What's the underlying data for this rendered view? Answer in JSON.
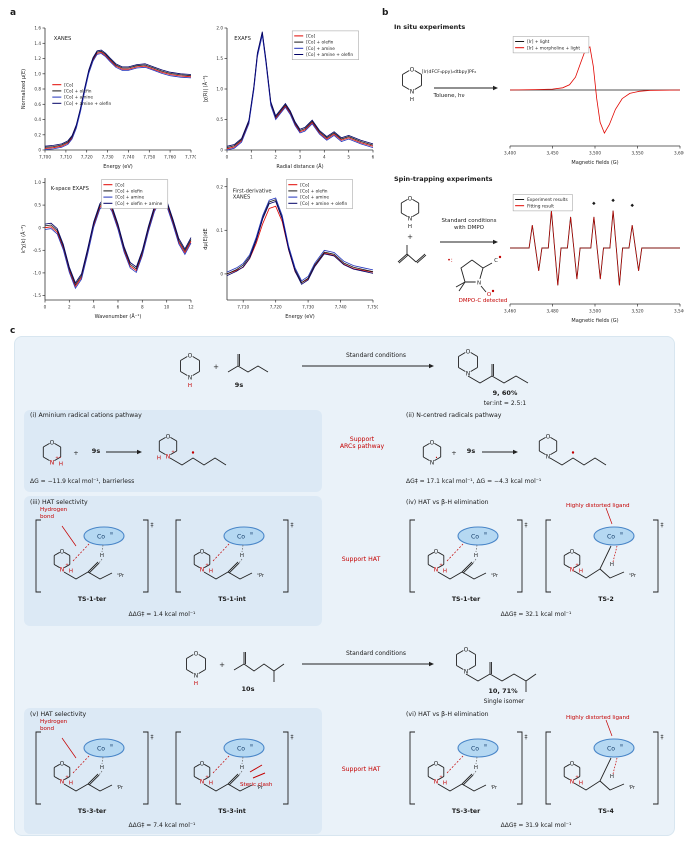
{
  "panels": {
    "a": "a",
    "b": "b",
    "c": "c"
  },
  "colors": {
    "red": "#c40000",
    "ink": "#222222",
    "co_fill": "#b5d8f2",
    "co_edge": "#4a86c8"
  },
  "chart_data": [
    {
      "type": "line",
      "name": "xanes",
      "title": "XANES",
      "title_fx": 0.06,
      "title_fy": 0.1,
      "xlabel": "Energy (eV)",
      "ylabel": "Normalized μ(E)",
      "xlim": [
        7700,
        7770
      ],
      "ylim": [
        0,
        1.6
      ],
      "yaxis": true,
      "xticks": [
        7700,
        7710,
        7720,
        7730,
        7740,
        7750,
        7760,
        7770
      ],
      "xtick_labels": [
        "7,700",
        "7,710",
        "7,720",
        "7,730",
        "7,740",
        "7,750",
        "7,760",
        "7,770"
      ],
      "yticks": [
        0,
        0.2,
        0.4,
        0.6,
        0.8,
        1.0,
        1.2,
        1.4,
        1.6
      ],
      "ytick_labels": [
        "0",
        "0.2",
        "0.4",
        "0.6",
        "0.8",
        "1.0",
        "1.2",
        "1.4",
        "1.6"
      ],
      "legend": {
        "fx": 0.05,
        "fy": 0.44,
        "boxed": false,
        "items": [
          {
            "label": "[Co]",
            "color": "#e10600"
          },
          {
            "label": "[Co] + olefin",
            "color": "#1a1a1a"
          },
          {
            "label": "[Co] + amine",
            "color": "#2233bb"
          },
          {
            "label": "[Co] + amine + olefin",
            "color": "#000066"
          }
        ]
      },
      "x": [
        7700,
        7704,
        7708,
        7711,
        7713,
        7715,
        7717,
        7719,
        7721,
        7723,
        7725,
        7727,
        7729,
        7731,
        7734,
        7737,
        7740,
        7744,
        7748,
        7752,
        7756,
        7760,
        7765,
        7770
      ],
      "shared_y": [
        0.02,
        0.03,
        0.05,
        0.09,
        0.16,
        0.3,
        0.52,
        0.78,
        1.02,
        1.18,
        1.27,
        1.28,
        1.24,
        1.18,
        1.1,
        1.06,
        1.06,
        1.09,
        1.1,
        1.06,
        1.02,
        0.99,
        0.97,
        0.96
      ],
      "series": [
        {
          "color": "#e10600",
          "dy": 0
        },
        {
          "color": "#1a1a1a",
          "dy": 0.015
        },
        {
          "color": "#2233bb",
          "dy": -0.015
        },
        {
          "color": "#000066",
          "dy": 0.03
        }
      ]
    },
    {
      "type": "line",
      "name": "exafs",
      "title": "EXAFS",
      "title_fx": 0.05,
      "title_fy": 0.1,
      "xlabel": "Radial distance (Å)",
      "ylabel": "|χ(R)| (Å⁻³)",
      "xlim": [
        0,
        6
      ],
      "ylim": [
        0,
        2.0
      ],
      "yaxis": true,
      "xticks": [
        0,
        1,
        2,
        3,
        4,
        5,
        6
      ],
      "yticks": [
        0,
        0.5,
        1.0,
        1.5,
        2.0
      ],
      "ytick_labels": [
        "0",
        "0.5",
        "1.0",
        "1.5",
        "2.0"
      ],
      "legend": {
        "fx": 0.46,
        "fy": 0.04,
        "boxed": true,
        "items": [
          {
            "label": "[Co]",
            "color": "#e10600"
          },
          {
            "label": "[Co] + olefin",
            "color": "#1a1a1a"
          },
          {
            "label": "[Co] + amine",
            "color": "#2233bb"
          },
          {
            "label": "[Co] + amine + olefin",
            "color": "#000066"
          }
        ]
      },
      "x": [
        0,
        0.3,
        0.6,
        0.9,
        1.1,
        1.25,
        1.45,
        1.6,
        1.8,
        2.0,
        2.2,
        2.4,
        2.6,
        2.8,
        3.0,
        3.2,
        3.5,
        3.8,
        4.1,
        4.4,
        4.7,
        5.0,
        5.5,
        6.0
      ],
      "shared_y": [
        0.02,
        0.05,
        0.15,
        0.45,
        1.0,
        1.55,
        1.9,
        1.45,
        0.75,
        0.52,
        0.62,
        0.72,
        0.6,
        0.42,
        0.3,
        0.33,
        0.45,
        0.28,
        0.18,
        0.26,
        0.16,
        0.2,
        0.12,
        0.06
      ],
      "series": [
        {
          "color": "#e10600",
          "dy": 0
        },
        {
          "color": "#1a1a1a",
          "dy": 0.02
        },
        {
          "color": "#2233bb",
          "dy": -0.02
        },
        {
          "color": "#000066",
          "dy": 0.04
        }
      ]
    },
    {
      "type": "line",
      "name": "kspace-exafs",
      "title": "K-space EXAFS",
      "title_fx": 0.04,
      "title_fy": 0.1,
      "xlabel": "Wavenumber (Å⁻¹)",
      "ylabel": "k³χ(k) (Å⁻³)",
      "xlim": [
        0,
        12
      ],
      "ylim": [
        -1.6,
        1.1
      ],
      "yaxis": true,
      "xticks": [
        0,
        2,
        4,
        6,
        8,
        10,
        12
      ],
      "yticks": [
        -1.5,
        -1.0,
        -0.5,
        0,
        0.5,
        1.0
      ],
      "ytick_labels": [
        "-1.5",
        "-1.0",
        "-0.5",
        "0",
        "0.5",
        "1.0"
      ],
      "legend": {
        "fx": 0.4,
        "fy": 0.03,
        "boxed": true,
        "items": [
          {
            "label": "[Co]",
            "color": "#e10600"
          },
          {
            "label": "[Co] + olefin",
            "color": "#1a1a1a"
          },
          {
            "label": "[Co] + amine",
            "color": "#2233bb"
          },
          {
            "label": "[Co] + olefin + amine",
            "color": "#000066"
          }
        ]
      },
      "x": [
        0,
        0.5,
        1,
        1.5,
        2,
        2.5,
        3,
        3.5,
        4,
        4.5,
        5,
        5.5,
        6,
        6.5,
        7,
        7.5,
        8,
        8.5,
        9,
        9.5,
        10,
        10.5,
        11,
        11.5,
        12
      ],
      "shared_y": [
        0,
        0.02,
        -0.1,
        -0.45,
        -0.95,
        -1.3,
        -1.1,
        -0.55,
        0.05,
        0.45,
        0.62,
        0.4,
        0.0,
        -0.5,
        -0.85,
        -0.95,
        -0.58,
        -0.05,
        0.4,
        0.65,
        0.52,
        0.12,
        -0.32,
        -0.55,
        -0.3
      ],
      "series": [
        {
          "color": "#e10600",
          "dy": 0
        },
        {
          "color": "#1a1a1a",
          "dy": 0.04
        },
        {
          "color": "#2233bb",
          "dy": -0.04
        },
        {
          "color": "#000066",
          "dy": 0.08
        }
      ]
    },
    {
      "type": "line",
      "name": "first-derivative-xanes",
      "title": "First-derivative\nXANES",
      "title_fx": 0.04,
      "title_fy": 0.12,
      "xlabel": "Energy (eV)",
      "ylabel": "dμ(E)/dE",
      "xlim": [
        7705,
        7750
      ],
      "ylim": [
        -0.06,
        0.22
      ],
      "yaxis": true,
      "xticks": [
        7710,
        7720,
        7730,
        7740,
        7750
      ],
      "xtick_labels": [
        "7,710",
        "7,720",
        "7,730",
        "7,740",
        "7,750"
      ],
      "yticks": [
        0,
        0.1,
        0.2
      ],
      "ytick_labels": [
        "0",
        "0.1",
        "0.2"
      ],
      "legend": {
        "fx": 0.42,
        "fy": 0.03,
        "boxed": true,
        "items": [
          {
            "label": "[Co]",
            "color": "#e10600"
          },
          {
            "label": "[Co] + olefin",
            "color": "#1a1a1a"
          },
          {
            "label": "[Co] + amine",
            "color": "#2233bb"
          },
          {
            "label": "[Co] + amine + olefin",
            "color": "#000066"
          }
        ]
      },
      "x": [
        7705,
        7708,
        7710,
        7712,
        7714,
        7716,
        7718,
        7720,
        7722,
        7724,
        7726,
        7728,
        7730,
        7732,
        7735,
        7738,
        7741,
        7744,
        7747,
        7750
      ],
      "shared_y": [
        0.0,
        0.01,
        0.02,
        0.04,
        0.08,
        0.13,
        0.165,
        0.17,
        0.13,
        0.06,
        0.01,
        -0.02,
        -0.01,
        0.02,
        0.05,
        0.045,
        0.025,
        0.015,
        0.01,
        0.005
      ],
      "series": [
        {
          "color": "#e10600",
          "y": [
            0,
            0.008,
            0.015,
            0.035,
            0.07,
            0.115,
            0.15,
            0.155,
            0.12,
            0.055,
            0.005,
            -0.02,
            -0.012,
            0.018,
            0.048,
            0.042,
            0.022,
            0.012,
            0.008,
            0.004
          ]
        },
        {
          "color": "#1a1a1a",
          "dy": 0
        },
        {
          "color": "#2233bb",
          "dy": 0.004
        },
        {
          "color": "#000066",
          "dy": -0.004
        }
      ]
    },
    {
      "type": "line",
      "name": "epr-in-situ",
      "xlabel": "Magnetic fields (G)",
      "xlim": [
        3400,
        3600
      ],
      "ylim": [
        -1.3,
        1.3
      ],
      "yaxis": false,
      "xticks": [
        3400,
        3450,
        3500,
        3550,
        3600
      ],
      "xtick_labels": [
        "3,400",
        "3,450",
        "3,500",
        "3,550",
        "3,600"
      ],
      "legend": {
        "fx": 0.03,
        "fy": 0.04,
        "boxed": true,
        "items": [
          {
            "label": "[Ir] + light",
            "color": "#1a1a1a"
          },
          {
            "label": "[Ir] + morpholine + light",
            "color": "#e10600"
          }
        ]
      },
      "x": [
        3400,
        3430,
        3450,
        3462,
        3470,
        3477,
        3483,
        3489,
        3494,
        3498,
        3502,
        3506,
        3511,
        3517,
        3524,
        3532,
        3541,
        3552,
        3565,
        3600
      ],
      "series": [
        {
          "color": "#1a1a1a",
          "y": [
            0,
            0,
            0,
            0,
            0,
            0,
            0,
            0,
            0,
            0,
            0,
            0,
            0,
            0,
            0,
            0,
            0,
            0,
            0,
            0
          ]
        },
        {
          "color": "#e10600",
          "y": [
            0,
            0.01,
            0.02,
            0.05,
            0.12,
            0.3,
            0.62,
            0.95,
            1.0,
            0.55,
            -0.2,
            -0.75,
            -1.0,
            -0.8,
            -0.45,
            -0.2,
            -0.08,
            -0.03,
            -0.01,
            0
          ]
        }
      ]
    },
    {
      "type": "line",
      "name": "epr-spin-trap",
      "xlabel": "Magnetic fields (G)",
      "xlim": [
        3460,
        3540
      ],
      "ylim": [
        -1.35,
        1.35
      ],
      "yaxis": false,
      "xticks": [
        3460,
        3480,
        3500,
        3520,
        3540
      ],
      "xtick_labels": [
        "3,460",
        "3,480",
        "3,500",
        "3,520",
        "3,540"
      ],
      "legend": {
        "fx": 0.03,
        "fy": 0.04,
        "boxed": true,
        "items": [
          {
            "label": "Experiment results",
            "color": "#1a1a1a"
          },
          {
            "label": "Fitting result",
            "color": "#e10600"
          }
        ]
      },
      "markers": {
        "symbol": "◆",
        "color": "#1a1a1a",
        "points": [
          [
            3470.5,
            1.0
          ],
          [
            3479.5,
            1.12
          ],
          [
            3488.5,
            1.05
          ],
          [
            3499.5,
            1.05
          ],
          [
            3508.5,
            1.12
          ],
          [
            3517.5,
            1.0
          ]
        ]
      },
      "x": [
        3460,
        3466,
        3469,
        3470.5,
        3472,
        3473.5,
        3475,
        3478,
        3479.5,
        3481,
        3482.5,
        3484,
        3487,
        3488.5,
        3490,
        3491.5,
        3493,
        3498,
        3499.5,
        3501,
        3502.5,
        3504,
        3507,
        3508.5,
        3510,
        3511.5,
        3513,
        3516,
        3517.5,
        3519,
        3520.5,
        3522,
        3527,
        3534,
        3540
      ],
      "shared_y": [
        0,
        0,
        0,
        0.55,
        0,
        -0.55,
        0,
        0,
        0.9,
        0,
        -0.9,
        0,
        0,
        0.75,
        0,
        -0.75,
        0,
        0,
        0.75,
        0,
        -0.75,
        0,
        0,
        0.9,
        0,
        -0.9,
        0,
        0,
        0.55,
        0,
        -0.55,
        0,
        0,
        0,
        0
      ],
      "series": [
        {
          "color": "#1a1a1a",
          "dy": 0,
          "w": 0.9
        },
        {
          "color": "#e10600",
          "dy": 0,
          "w": 0.55
        }
      ]
    }
  ],
  "panel_b": {
    "in_situ_title": "In situ experiments",
    "arrow_top": "[Ir(dFCF₃ppy)₂dtbpy]PF₆",
    "arrow_bottom": "Toluene, hν",
    "spin_title": "Spin-trapping experiments",
    "spin_arrow_label": "Standard conditions\nwith DMPO",
    "dmpo_detected": "DMPO-C detected",
    "radical_dot": "•:"
  },
  "panel_c": {
    "dagger": "‡",
    "atoms": {
      "O": "O",
      "N": "N",
      "H": "H",
      "C": "C",
      "Co": "Co",
      "CoIII": "III",
      "nPr": "ⁿPr",
      "iPr": "ⁱPr",
      "plus": "+",
      "dot": "•",
      "plusdot": "+•"
    },
    "rxn1": {
      "reactant_label": "9s",
      "arrow_label": "Standard conditions",
      "product_label": "9, 60%",
      "product_sub": "ter:int = 2.5:1"
    },
    "rxn2": {
      "reactant_label": "10s",
      "arrow_label": "Standard conditions",
      "product_label": "10, 71%",
      "product_sub": "Single isomer"
    },
    "sec_i": {
      "title": "(i) Aminium radical cations pathway",
      "energy": "ΔG = −11.9 kcal mol⁻¹, barrierless",
      "support": "Support\nARCs pathway"
    },
    "sec_ii": {
      "title": "(ii) N-centred radicals pathway",
      "energy": "ΔG‡ = 17.1 kcal mol⁻¹, ΔG = −4.3 kcal mol⁻¹"
    },
    "sec_iii": {
      "title": "(iii) HAT selectivity",
      "hbond": "Hydrogen\nbond",
      "ts1": "TS-1-ter",
      "ts2": "TS-1-int",
      "energy": "ΔΔG‡ = 1.4 kcal mol⁻¹",
      "support": "Support HAT"
    },
    "sec_iv": {
      "title": "(iv) HAT vs β-H elimination",
      "note": "Highly distorted ligand",
      "ts1": "TS-1-ter",
      "ts2": "TS-2",
      "energy": "ΔΔG‡ = 32.1 kcal mol⁻¹"
    },
    "sec_v": {
      "title": "(v) HAT selectivity",
      "hbond": "Hydrogen\nbond",
      "clash": "Steric clash",
      "ts1": "TS-3-ter",
      "ts2": "TS-3-int",
      "energy": "ΔΔG‡ = 7.4 kcal mol⁻¹",
      "support": "Support HAT"
    },
    "sec_vi": {
      "title": "(vi) HAT vs β-H elimination",
      "note": "Highly distorted ligand",
      "ts1": "TS-3-ter",
      "ts2": "TS-4",
      "energy": "ΔΔG‡ = 31.9 kcal mol⁻¹"
    }
  }
}
